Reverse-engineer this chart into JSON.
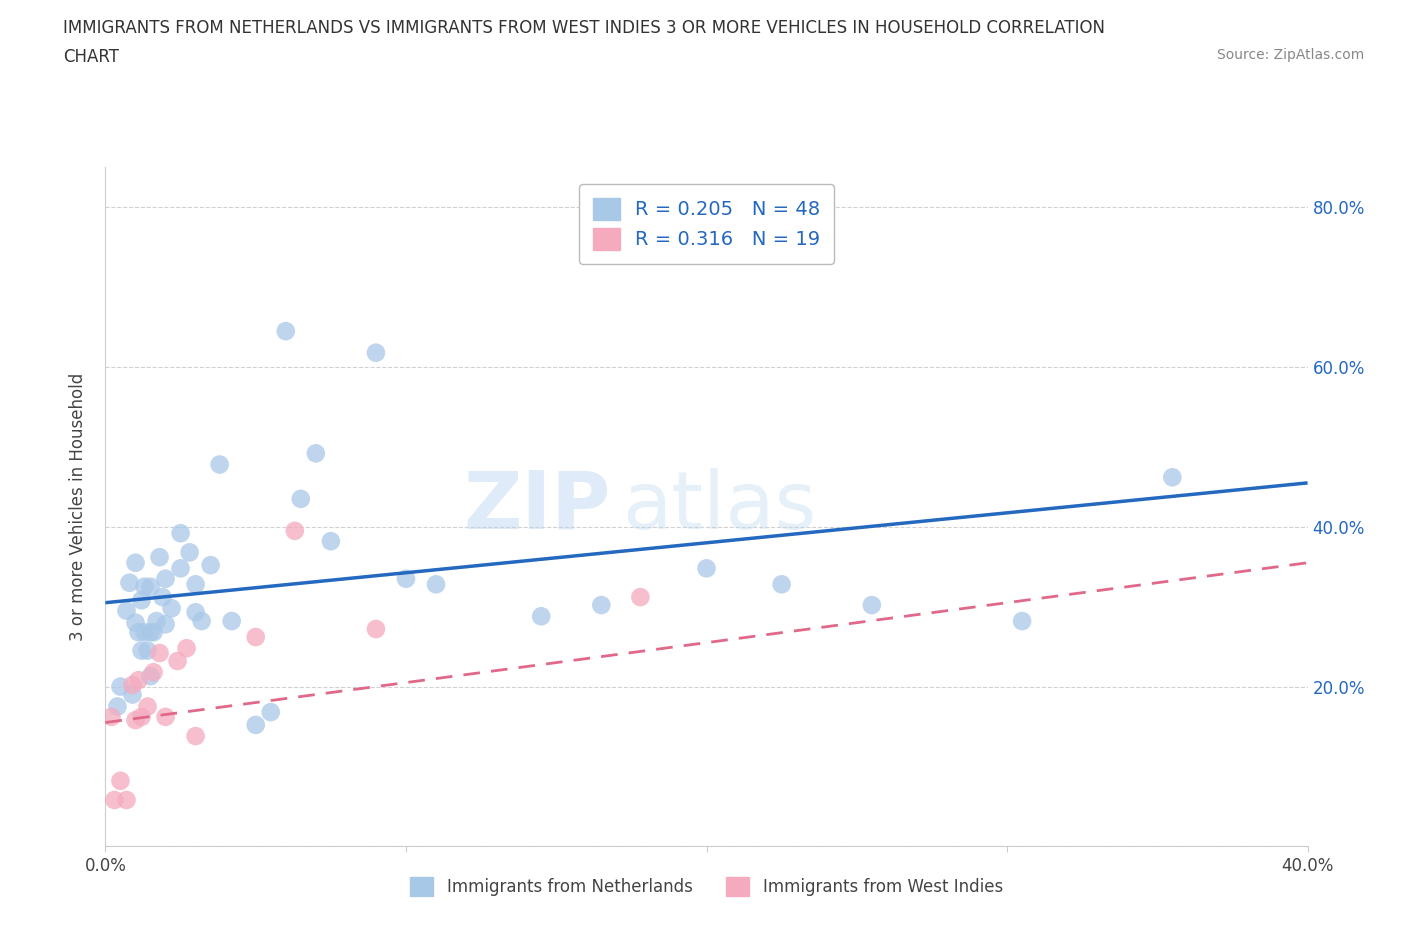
{
  "title_line1": "IMMIGRANTS FROM NETHERLANDS VS IMMIGRANTS FROM WEST INDIES 3 OR MORE VEHICLES IN HOUSEHOLD CORRELATION",
  "title_line2": "CHART",
  "source": "Source: ZipAtlas.com",
  "ylabel": "3 or more Vehicles in Household",
  "xlim": [
    0.0,
    0.4
  ],
  "ylim": [
    0.0,
    0.85
  ],
  "netherlands_R": 0.205,
  "netherlands_N": 48,
  "westindies_R": 0.316,
  "westindies_N": 19,
  "netherlands_color": "#a8c8e8",
  "westindies_color": "#f5aabe",
  "netherlands_line_color": "#2468c0",
  "westindies_line_color": "#e06888",
  "legend_label1": "Immigrants from Netherlands",
  "legend_label2": "Immigrants from West Indies",
  "watermark_zip": "ZIP",
  "watermark_atlas": "atlas",
  "netherlands_x": [
    0.004,
    0.005,
    0.007,
    0.008,
    0.009,
    0.01,
    0.01,
    0.011,
    0.012,
    0.012,
    0.013,
    0.013,
    0.014,
    0.015,
    0.015,
    0.015,
    0.016,
    0.017,
    0.018,
    0.019,
    0.02,
    0.02,
    0.022,
    0.025,
    0.025,
    0.028,
    0.03,
    0.03,
    0.032,
    0.035,
    0.038,
    0.042,
    0.05,
    0.055,
    0.06,
    0.065,
    0.07,
    0.075,
    0.09,
    0.1,
    0.11,
    0.145,
    0.165,
    0.2,
    0.225,
    0.255,
    0.305,
    0.355
  ],
  "netherlands_y": [
    0.175,
    0.2,
    0.295,
    0.33,
    0.19,
    0.28,
    0.355,
    0.268,
    0.308,
    0.245,
    0.268,
    0.325,
    0.245,
    0.213,
    0.268,
    0.325,
    0.268,
    0.282,
    0.362,
    0.312,
    0.278,
    0.335,
    0.298,
    0.392,
    0.348,
    0.368,
    0.293,
    0.328,
    0.282,
    0.352,
    0.478,
    0.282,
    0.152,
    0.168,
    0.645,
    0.435,
    0.492,
    0.382,
    0.618,
    0.335,
    0.328,
    0.288,
    0.302,
    0.348,
    0.328,
    0.302,
    0.282,
    0.462
  ],
  "westindies_x": [
    0.002,
    0.003,
    0.005,
    0.007,
    0.009,
    0.01,
    0.011,
    0.012,
    0.014,
    0.016,
    0.018,
    0.02,
    0.024,
    0.027,
    0.03,
    0.05,
    0.063,
    0.09,
    0.178
  ],
  "westindies_y": [
    0.162,
    0.058,
    0.082,
    0.058,
    0.202,
    0.158,
    0.208,
    0.162,
    0.175,
    0.218,
    0.242,
    0.162,
    0.232,
    0.248,
    0.138,
    0.262,
    0.395,
    0.272,
    0.312
  ],
  "nl_line_x0": 0.0,
  "nl_line_y0": 0.305,
  "nl_line_x1": 0.4,
  "nl_line_y1": 0.455,
  "wi_line_x0": 0.0,
  "wi_line_y0": 0.155,
  "wi_line_x1": 0.4,
  "wi_line_y1": 0.355
}
